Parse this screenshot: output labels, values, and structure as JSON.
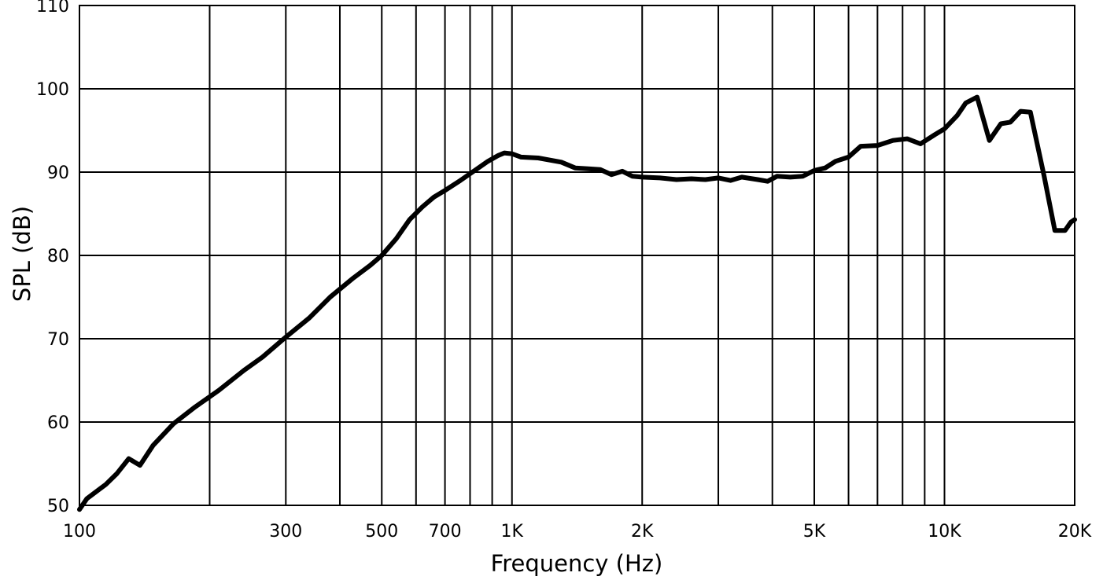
{
  "chart_data": {
    "type": "line",
    "xlabel": "Frequency (Hz)",
    "ylabel": "SPL (dB)",
    "x_scale": "log",
    "xlim": [
      100,
      20000
    ],
    "ylim": [
      50,
      110
    ],
    "grid": true,
    "x_gridlines": [
      200,
      300,
      400,
      500,
      600,
      700,
      800,
      900,
      1000,
      2000,
      3000,
      4000,
      5000,
      6000,
      7000,
      8000,
      9000,
      10000
    ],
    "x_ticks": [
      {
        "value": 100,
        "label": "100"
      },
      {
        "value": 300,
        "label": "300"
      },
      {
        "value": 500,
        "label": "500"
      },
      {
        "value": 700,
        "label": "700"
      },
      {
        "value": 1000,
        "label": "1K"
      },
      {
        "value": 2000,
        "label": "2K"
      },
      {
        "value": 5000,
        "label": "5K"
      },
      {
        "value": 10000,
        "label": "10K"
      },
      {
        "value": 20000,
        "label": "20K"
      }
    ],
    "y_ticks": [
      {
        "value": 50,
        "label": "50"
      },
      {
        "value": 60,
        "label": "60"
      },
      {
        "value": 70,
        "label": "70"
      },
      {
        "value": 80,
        "label": "80"
      },
      {
        "value": 90,
        "label": "90"
      },
      {
        "value": 100,
        "label": "100"
      },
      {
        "value": 110,
        "label": "110"
      }
    ],
    "series": [
      {
        "color": "#000000",
        "points": [
          [
            100,
            49.5
          ],
          [
            104,
            50.8
          ],
          [
            115,
            52.5
          ],
          [
            122,
            53.8
          ],
          [
            130,
            55.6
          ],
          [
            138,
            54.8
          ],
          [
            148,
            57.2
          ],
          [
            165,
            59.8
          ],
          [
            185,
            61.8
          ],
          [
            210,
            63.8
          ],
          [
            240,
            66.2
          ],
          [
            265,
            67.8
          ],
          [
            300,
            70.2
          ],
          [
            340,
            72.5
          ],
          [
            380,
            75.0
          ],
          [
            430,
            77.3
          ],
          [
            470,
            78.8
          ],
          [
            500,
            80.0
          ],
          [
            540,
            82.0
          ],
          [
            580,
            84.3
          ],
          [
            620,
            85.8
          ],
          [
            660,
            87.0
          ],
          [
            700,
            87.8
          ],
          [
            760,
            89.0
          ],
          [
            820,
            90.2
          ],
          [
            880,
            91.3
          ],
          [
            930,
            92.0
          ],
          [
            960,
            92.3
          ],
          [
            1000,
            92.2
          ],
          [
            1050,
            91.8
          ],
          [
            1150,
            91.7
          ],
          [
            1300,
            91.2
          ],
          [
            1400,
            90.5
          ],
          [
            1500,
            90.4
          ],
          [
            1600,
            90.3
          ],
          [
            1700,
            89.7
          ],
          [
            1800,
            90.1
          ],
          [
            1900,
            89.5
          ],
          [
            2000,
            89.4
          ],
          [
            2200,
            89.3
          ],
          [
            2400,
            89.1
          ],
          [
            2600,
            89.2
          ],
          [
            2800,
            89.1
          ],
          [
            3000,
            89.3
          ],
          [
            3200,
            89.0
          ],
          [
            3400,
            89.4
          ],
          [
            3700,
            89.1
          ],
          [
            3900,
            88.9
          ],
          [
            4100,
            89.5
          ],
          [
            4400,
            89.4
          ],
          [
            4700,
            89.5
          ],
          [
            5000,
            90.2
          ],
          [
            5300,
            90.5
          ],
          [
            5600,
            91.3
          ],
          [
            6000,
            91.8
          ],
          [
            6400,
            93.1
          ],
          [
            7000,
            93.2
          ],
          [
            7600,
            93.8
          ],
          [
            8200,
            94.0
          ],
          [
            8800,
            93.4
          ],
          [
            9500,
            94.5
          ],
          [
            10000,
            95.2
          ],
          [
            10700,
            96.8
          ],
          [
            11200,
            98.3
          ],
          [
            11900,
            99.0
          ],
          [
            12700,
            93.8
          ],
          [
            13500,
            95.8
          ],
          [
            14200,
            96.0
          ],
          [
            15000,
            97.3
          ],
          [
            15800,
            97.2
          ],
          [
            17000,
            89.5
          ],
          [
            18000,
            83.0
          ],
          [
            19000,
            83.0
          ],
          [
            19600,
            84.0
          ],
          [
            20000,
            84.3
          ]
        ]
      }
    ]
  }
}
